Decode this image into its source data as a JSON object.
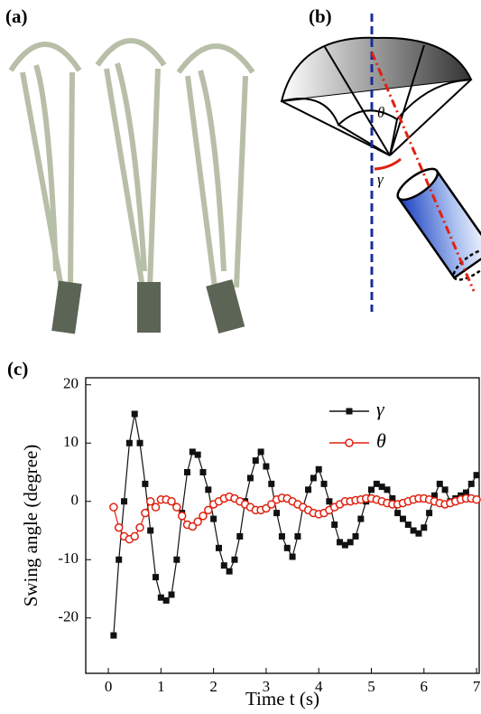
{
  "panels": {
    "a": {
      "label": "(a)"
    },
    "b": {
      "label": "(b)",
      "angle_theta": "θ",
      "angle_gamma": "γ"
    },
    "c": {
      "label": "(c)"
    }
  },
  "chart_data": {
    "type": "line",
    "x_label": "Time t (s)",
    "y_label": "Swing angle (degree)",
    "xlim": [
      -0.43,
      7.05
    ],
    "ylim": [
      -29.5,
      21.2
    ],
    "xticks": [
      0,
      1,
      2,
      3,
      4,
      5,
      6,
      7
    ],
    "yticks": [
      20,
      10,
      0,
      -10,
      -20
    ],
    "x": [
      0.1,
      0.2,
      0.3,
      0.4,
      0.5,
      0.6,
      0.7,
      0.8,
      0.9,
      1.0,
      1.1,
      1.2,
      1.3,
      1.4,
      1.5,
      1.6,
      1.7,
      1.8,
      1.9,
      2.0,
      2.1,
      2.2,
      2.3,
      2.4,
      2.5,
      2.6,
      2.7,
      2.8,
      2.9,
      3.0,
      3.1,
      3.2,
      3.3,
      3.4,
      3.5,
      3.6,
      3.7,
      3.8,
      3.9,
      4.0,
      4.1,
      4.2,
      4.3,
      4.4,
      4.5,
      4.6,
      4.7,
      4.8,
      4.9,
      5.0,
      5.1,
      5.2,
      5.3,
      5.4,
      5.5,
      5.6,
      5.7,
      5.8,
      5.9,
      6.0,
      6.1,
      6.2,
      6.3,
      6.4,
      6.5,
      6.6,
      6.7,
      6.8,
      6.9,
      7.0
    ],
    "legend": "upper right",
    "series": [
      {
        "name": "γ",
        "color": "#111111",
        "marker": "square",
        "values": [
          -23,
          -10,
          0,
          10,
          15,
          10,
          3,
          -5,
          -13,
          -16.5,
          -17,
          -16,
          -10,
          -2,
          5,
          8.5,
          8,
          5,
          2,
          -3,
          -8,
          -11,
          -12,
          -10,
          -6,
          0,
          4,
          7,
          8.5,
          6,
          3,
          -2,
          -6,
          -8,
          -9.5,
          -6,
          -1,
          2,
          4,
          5.5,
          3,
          0,
          -4,
          -7,
          -7.5,
          -7,
          -6,
          -3,
          0,
          2,
          3,
          2.5,
          2,
          0.5,
          -2,
          -3,
          -4,
          -5,
          -5.5,
          -4.5,
          -2,
          1,
          3,
          2,
          0,
          0.5,
          1,
          1.5,
          3,
          4.5
        ]
      },
      {
        "name": "θ",
        "color": "#e02010",
        "marker": "open-circle",
        "values": [
          -1,
          -4.5,
          -6,
          -6.5,
          -6,
          -4.5,
          -2,
          0,
          -1,
          0.3,
          0.3,
          0,
          -1,
          -2.5,
          -4,
          -4.3,
          -3.5,
          -2.5,
          -1.5,
          -0.5,
          0,
          0.5,
          0.8,
          0.5,
          0,
          -0.5,
          -1,
          -1.5,
          -1.5,
          -1.2,
          -0.5,
          0.3,
          0.6,
          0.5,
          0,
          -0.5,
          -1,
          -1.5,
          -2,
          -2.2,
          -2,
          -1.5,
          -1,
          -0.5,
          0,
          0,
          0.2,
          0.3,
          0.5,
          0.5,
          0.3,
          0,
          -0.3,
          -0.5,
          -0.5,
          -0.3,
          0,
          0.3,
          0.5,
          0.5,
          0.3,
          0,
          -0.3,
          -0.5,
          -0.3,
          0,
          0.3,
          0.5,
          0.5,
          0.3
        ]
      }
    ]
  }
}
